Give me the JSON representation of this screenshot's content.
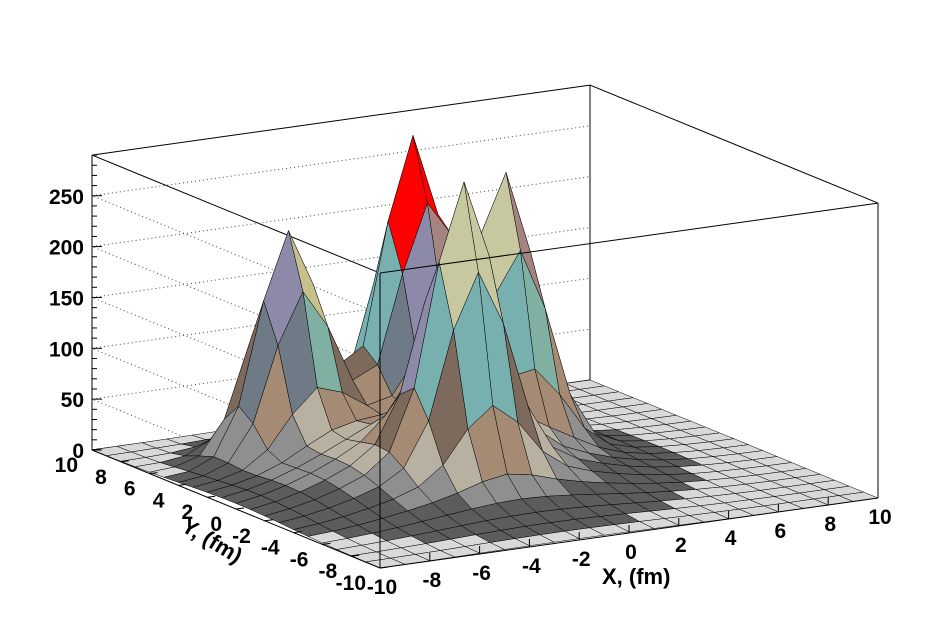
{
  "chart_data": {
    "type": "surface",
    "style": "lego-colored surface with black mesh (ROOT SURF1 style)",
    "xlabel": "X, (fm)",
    "ylabel": "Y, (fm)",
    "zlabel": "",
    "xlim": [
      -10,
      10
    ],
    "ylim": [
      -10,
      10
    ],
    "zlim": [
      0,
      290
    ],
    "x_ticks": [
      "-10",
      "-8",
      "-6",
      "-4",
      "-2",
      "0",
      "2",
      "4",
      "6",
      "8",
      "10"
    ],
    "y_ticks": [
      "-10",
      "-8",
      "-6",
      "-4",
      "-2",
      "0",
      "2",
      "4",
      "6",
      "8",
      "10"
    ],
    "z_ticks": [
      "0",
      "50",
      "100",
      "150",
      "200",
      "250"
    ],
    "grid": true,
    "grid_spacing": 1,
    "peaks": [
      {
        "x": -5,
        "y": 5,
        "height": 210,
        "width": 1.2
      },
      {
        "x": 0,
        "y": 5,
        "height": 280,
        "width": 1.2
      },
      {
        "x": -2,
        "y": -2,
        "height": 250,
        "width": 1.2
      },
      {
        "x": 2,
        "y": 2,
        "height": 245,
        "width": 1.2
      }
    ],
    "central_hump": {
      "x": -2,
      "y": 0,
      "height": 65,
      "width": 3.6
    },
    "color_bands": [
      "#5c5c5c",
      "#8f8f8f",
      "#b8b0a0",
      "#a58a74",
      "#7d6a5c",
      "#6e7b86",
      "#7fb0a2",
      "#78b0b0",
      "#8c8aa8",
      "#c7c08a",
      "#a58480",
      "#c8c8a0",
      "#ff0000",
      "#ff00ff",
      "#00ff00"
    ]
  }
}
